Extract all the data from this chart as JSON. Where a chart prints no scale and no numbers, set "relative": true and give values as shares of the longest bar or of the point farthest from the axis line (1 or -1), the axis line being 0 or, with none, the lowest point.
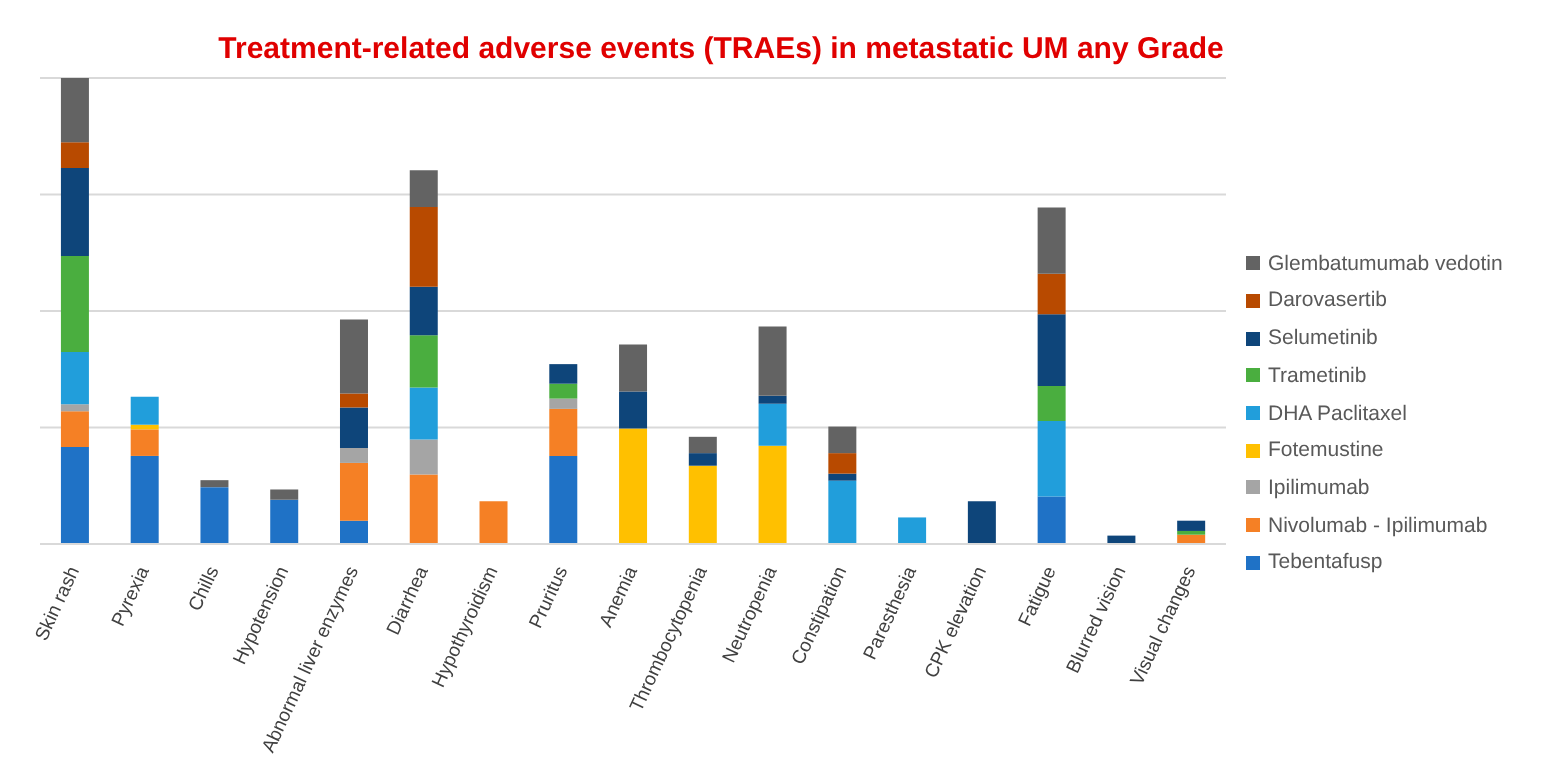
{
  "chart_data": {
    "type": "bar",
    "title": "Treatment-related adverse events (TRAEs) in metastatic UM any Grade",
    "stacked": true,
    "relative": true,
    "grid": "y",
    "legend": "right",
    "categories": [
      "Skin rash",
      "Pyrexia",
      "Chills",
      "Hypotension",
      "Abnormal liver enzymes",
      "Diarrhea",
      "Hypothyroidism",
      "Pruritus",
      "Anemia",
      "Thrombocytopenia",
      "Neutropenia",
      "Constipation",
      "Paresthesia",
      "CPK elevation",
      "Fatigue",
      "Blurred vision",
      "Visual changes"
    ],
    "series": [
      {
        "name": "Tebentafusp",
        "color": "#1f72c6",
        "values": [
          0.208,
          0.189,
          0.122,
          0.095,
          0.05,
          null,
          null,
          0.189,
          null,
          null,
          null,
          null,
          null,
          null,
          0.102,
          null,
          null
        ]
      },
      {
        "name": "Nivolumab - Ipilimumab",
        "color": "#f58025",
        "values": [
          0.077,
          0.057,
          null,
          null,
          0.124,
          0.149,
          0.092,
          0.101,
          null,
          null,
          null,
          null,
          null,
          null,
          null,
          null,
          0.02
        ]
      },
      {
        "name": "Ipilimumab",
        "color": "#a5a5a5",
        "values": [
          0.015,
          null,
          null,
          null,
          0.032,
          0.075,
          null,
          0.022,
          null,
          null,
          null,
          null,
          null,
          null,
          null,
          null,
          null
        ]
      },
      {
        "name": "Fotemustine",
        "color": "#ffc000",
        "values": [
          null,
          0.01,
          null,
          null,
          null,
          null,
          null,
          null,
          0.248,
          0.168,
          0.211,
          null,
          null,
          null,
          null,
          null,
          null
        ]
      },
      {
        "name": "DHA Paclitaxel",
        "color": "#219edb",
        "values": [
          0.112,
          0.06,
          null,
          null,
          null,
          0.112,
          null,
          null,
          null,
          null,
          0.09,
          0.136,
          0.057,
          null,
          0.162,
          null,
          null
        ]
      },
      {
        "name": "Trametinib",
        "color": "#4aae3f",
        "values": [
          0.206,
          null,
          null,
          null,
          null,
          0.112,
          null,
          0.032,
          null,
          null,
          null,
          null,
          null,
          null,
          0.075,
          null,
          0.008
        ]
      },
      {
        "name": "Selumetinib",
        "color": "#0e457a",
        "values": [
          0.189,
          null,
          null,
          null,
          0.087,
          0.104,
          null,
          0.042,
          0.079,
          0.027,
          0.017,
          0.015,
          null,
          0.092,
          0.154,
          0.018,
          0.022
        ]
      },
      {
        "name": "Darovasertib",
        "color": "#b84a00",
        "values": [
          0.055,
          null,
          null,
          null,
          0.03,
          0.171,
          null,
          null,
          null,
          null,
          null,
          0.044,
          null,
          null,
          0.087,
          null,
          null
        ]
      },
      {
        "name": "Glembatumumab vedotin",
        "color": "#636363",
        "values": [
          0.138,
          null,
          0.015,
          0.022,
          0.159,
          0.079,
          null,
          null,
          0.101,
          0.035,
          0.149,
          0.057,
          null,
          null,
          0.142,
          null,
          null
        ]
      }
    ]
  }
}
